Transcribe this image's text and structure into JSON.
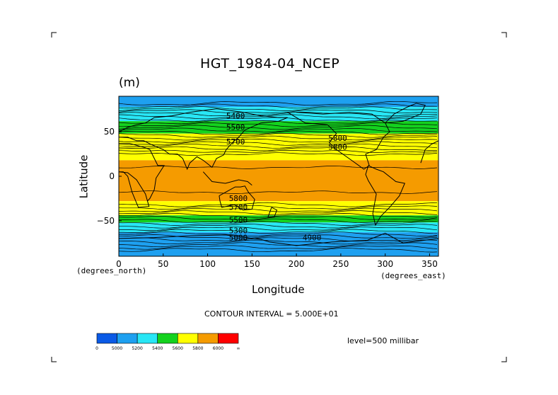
{
  "chart_data": {
    "type": "heatmap",
    "title": "HGT_1984-04_NCEP",
    "units": "(m)",
    "xlabel": "Longitude",
    "ylabel": "Latitude",
    "x_unit_note": "(degrees_east)",
    "y_unit_note": "(degrees_north)",
    "xlim": [
      0,
      360
    ],
    "ylim": [
      -90,
      90
    ],
    "x_ticks": [
      0,
      50,
      100,
      150,
      200,
      250,
      300,
      350
    ],
    "y_ticks": [
      -50,
      0,
      50
    ],
    "contour_interval_text": "CONTOUR INTERVAL = 5.000E+01",
    "level_text": "level=500 millibar",
    "colorbar": {
      "labels": [
        "0",
        "5000",
        "5200",
        "5400",
        "5600",
        "5800",
        "6000",
        "∞"
      ],
      "colors": [
        "#0a5ae6",
        "#1ea0f0",
        "#28e6f5",
        "#14d21e",
        "#ffff00",
        "#f59b00",
        "#ff0000"
      ]
    },
    "contour_labels": [
      {
        "text": "5400",
        "lon": 121,
        "lat": 65
      },
      {
        "text": "5500",
        "lon": 121,
        "lat": 52
      },
      {
        "text": "5700",
        "lon": 121,
        "lat": 36
      },
      {
        "text": "5800",
        "lon": 236,
        "lat": 40
      },
      {
        "text": "5800",
        "lon": 236,
        "lat": 30
      },
      {
        "text": "5800",
        "lon": 124,
        "lat": -28
      },
      {
        "text": "5700",
        "lon": 124,
        "lat": -38
      },
      {
        "text": "5500",
        "lon": 124,
        "lat": -52
      },
      {
        "text": "5300",
        "lon": 124,
        "lat": -64
      },
      {
        "text": "5000",
        "lon": 124,
        "lat": -72
      },
      {
        "text": "4900",
        "lon": 207,
        "lat": -72
      }
    ],
    "bands": [
      {
        "lat_top": 90,
        "lat_bottom": 78,
        "value": 5100
      },
      {
        "lat_top": 78,
        "lat_bottom": 62,
        "value": 5250
      },
      {
        "lat_top": 62,
        "lat_bottom": 48,
        "value": 5450
      },
      {
        "lat_top": 48,
        "lat_bottom": 35,
        "value": 5650
      },
      {
        "lat_top": 35,
        "lat_bottom": 18,
        "value": 5750
      },
      {
        "lat_top": 18,
        "lat_bottom": -28,
        "value": 5850
      },
      {
        "lat_top": -28,
        "lat_bottom": -36,
        "value": 5750
      },
      {
        "lat_top": -36,
        "lat_bottom": -44,
        "value": 5650
      },
      {
        "lat_top": -44,
        "lat_bottom": -52,
        "value": 5450
      },
      {
        "lat_top": -52,
        "lat_bottom": -63,
        "value": 5250
      },
      {
        "lat_top": -63,
        "lat_bottom": -90,
        "value": 5100
      }
    ]
  }
}
